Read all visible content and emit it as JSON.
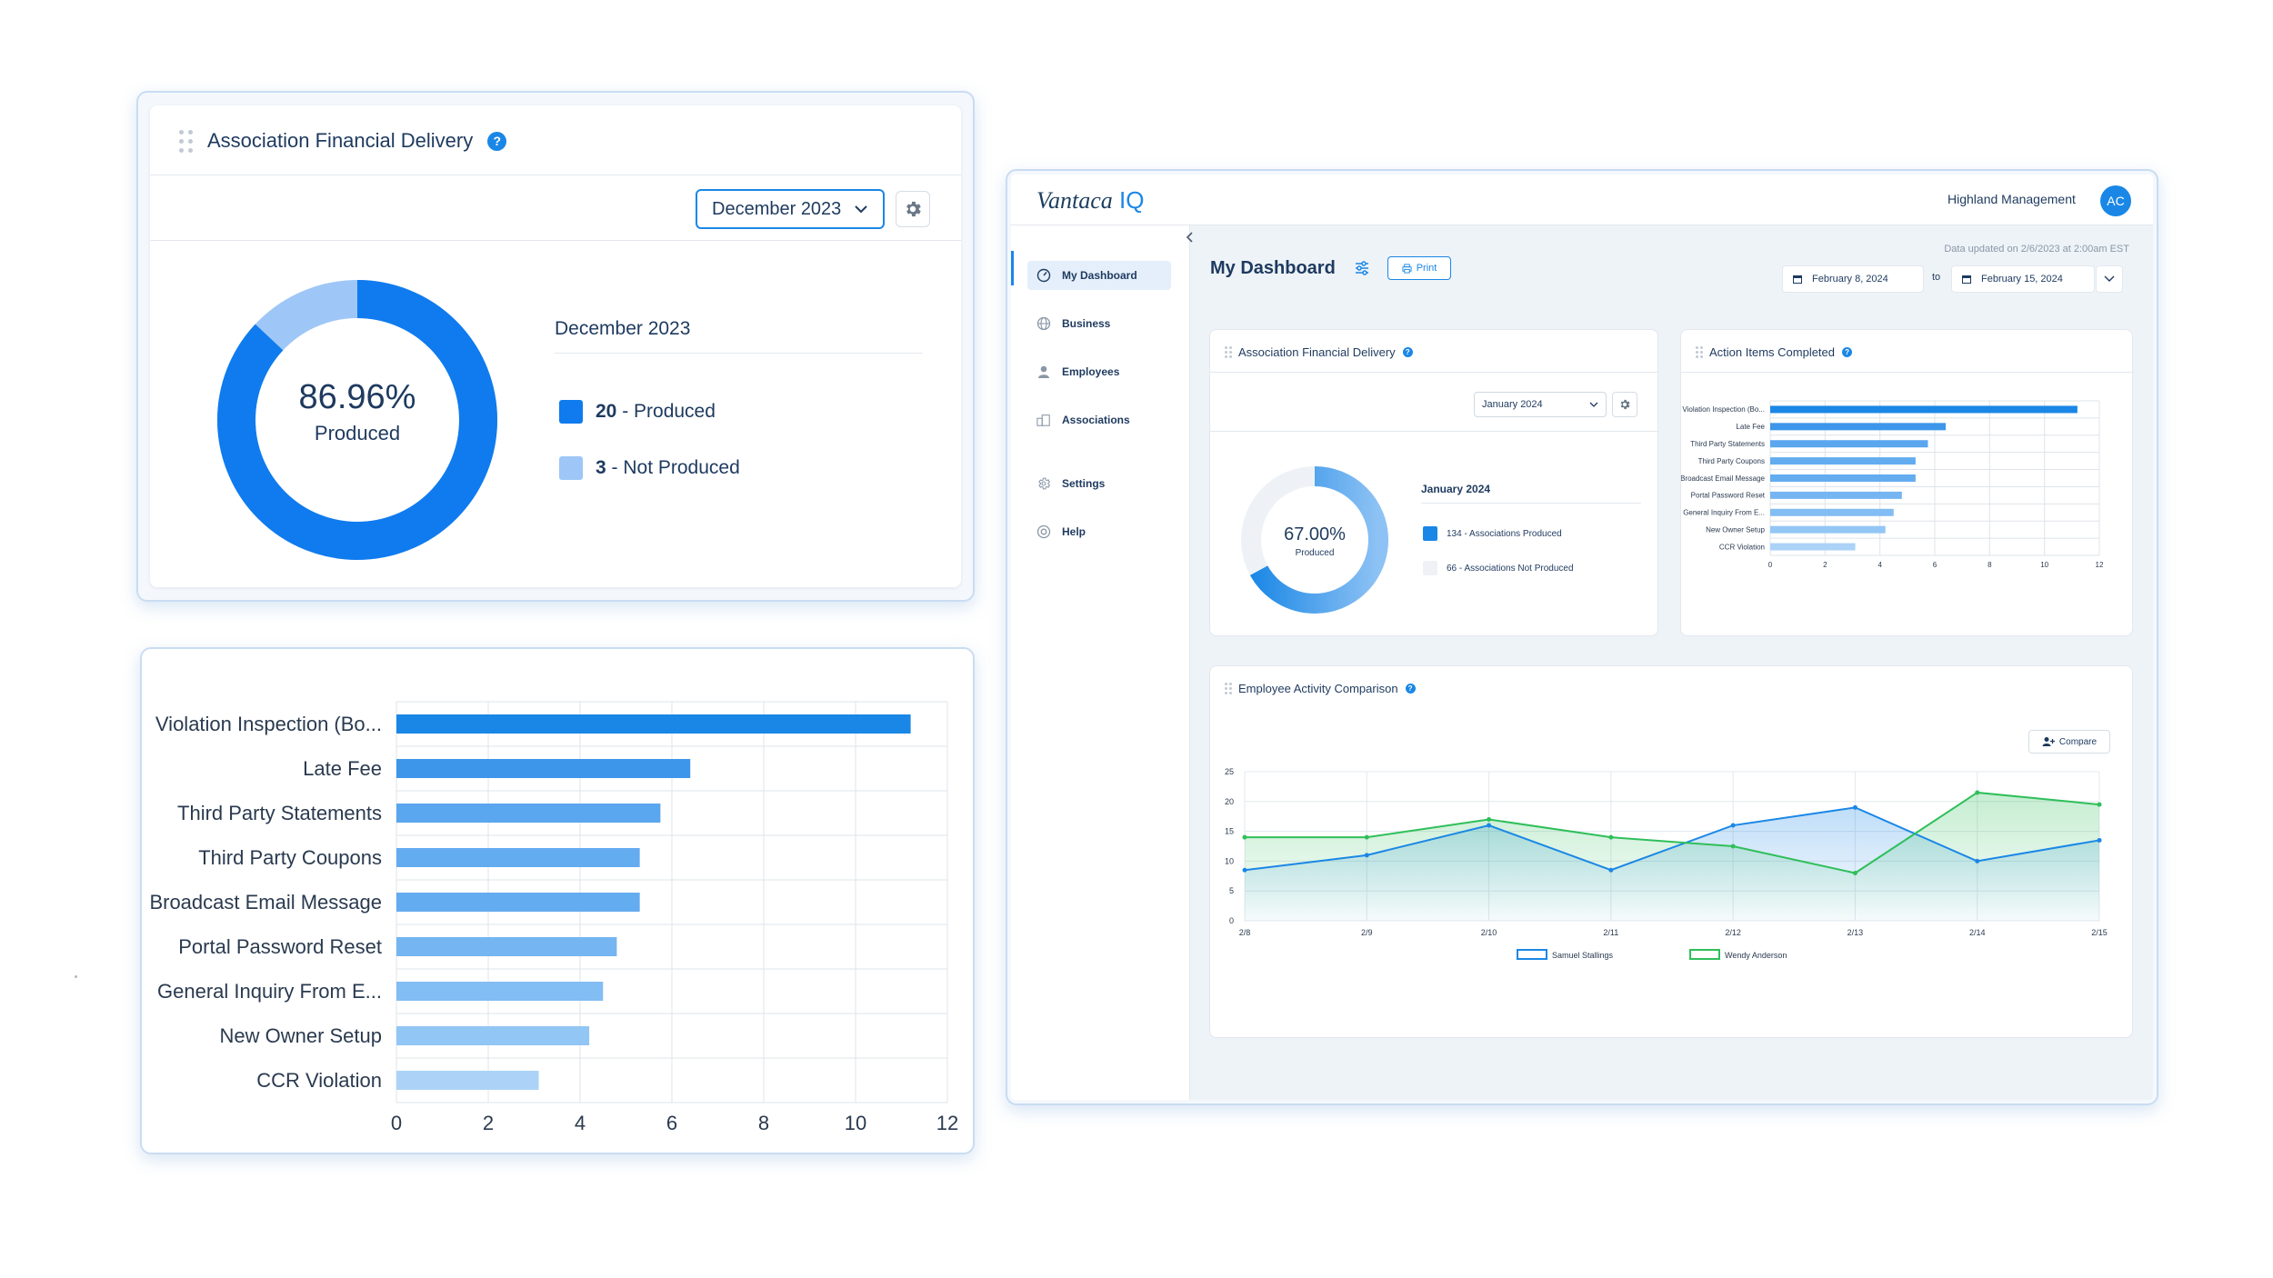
{
  "left_panel": {
    "title": "Association Financial Delivery",
    "help_glyph": "?",
    "month_select": "December 2023",
    "donut": {
      "produced_pct": 86.96,
      "pct_label": "86.96%",
      "center_sub": "Produced"
    },
    "legend_title": "December 2023",
    "legend": [
      {
        "count": "20",
        "label": " - Produced",
        "color": "#0f7bee"
      },
      {
        "count": "3",
        "label": " - Not Produced",
        "color": "#9ec7f7"
      }
    ]
  },
  "left_bar_chart": {
    "chart_data": {
      "type": "bar",
      "orientation": "horizontal",
      "categories": [
        "Violation Inspection (Bo...",
        "Late Fee",
        "Third Party Statements",
        "Third Party Coupons",
        "Broadcast Email Message",
        "Portal Password Reset",
        "General Inquiry From E...",
        "New Owner Setup",
        "CCR Violation"
      ],
      "values": [
        11.2,
        6.4,
        5.75,
        5.3,
        5.3,
        4.8,
        4.5,
        4.2,
        3.1
      ],
      "xlim": [
        0,
        12
      ],
      "xticks": [
        "0",
        "2",
        "4",
        "6",
        "8",
        "10",
        "12"
      ],
      "grid": true
    }
  },
  "app": {
    "logo_main": "Vantaca",
    "logo_suffix": "IQ",
    "company": "Highland Management",
    "avatar": "AC",
    "sidebar": [
      {
        "label": "My Dashboard",
        "icon": "dashboard-icon"
      },
      {
        "label": "Business",
        "icon": "globe-icon"
      },
      {
        "label": "Employees",
        "icon": "person-icon"
      },
      {
        "label": "Associations",
        "icon": "building-icon"
      },
      {
        "label": "Settings",
        "icon": "gear-icon"
      },
      {
        "label": "Help",
        "icon": "lifebuoy-icon"
      }
    ],
    "page_title": "My Dashboard",
    "print_label": "Print",
    "data_updated": "Data updated on 2/6/2023 at 2:00am EST",
    "date_from": "February 8, 2024",
    "date_to_label": "to",
    "date_to": "February 15, 2024",
    "afd_card": {
      "title": "Association Financial Delivery",
      "month_select": "January 2024",
      "donut": {
        "produced_pct": 67.0,
        "pct_label": "67.00%",
        "center_sub": "Produced"
      },
      "legend_title": "January 2024",
      "legend": [
        {
          "label": "134 - Associations Produced",
          "color": "#1a87e6"
        },
        {
          "label": "66 - Associations Not Produced",
          "color": "#e8edf2"
        }
      ]
    },
    "action_card": {
      "title": "Action Items Completed",
      "chart_data": {
        "type": "bar",
        "orientation": "horizontal",
        "categories": [
          "Violation Inspection (Bo...",
          "Late Fee",
          "Third Party Statements",
          "Third Party Coupons",
          "Broadcast Email Message",
          "Portal Password Reset",
          "General Inquiry From E...",
          "New Owner Setup",
          "CCR Violation"
        ],
        "values": [
          11.2,
          6.4,
          5.75,
          5.3,
          5.3,
          4.8,
          4.5,
          4.2,
          3.1
        ],
        "xlim": [
          0,
          12
        ],
        "xticks": [
          "0",
          "2",
          "4",
          "6",
          "8",
          "10",
          "12"
        ],
        "grid": true
      }
    },
    "employee_card": {
      "title": "Employee Activity Comparison",
      "compare_label": "Compare",
      "chart_data": {
        "type": "area",
        "x": [
          "2/8",
          "2/9",
          "2/10",
          "2/11",
          "2/12",
          "2/13",
          "2/14",
          "2/15"
        ],
        "series": [
          {
            "name": "Samuel Stallings",
            "color": "#1a87e6",
            "values": [
              8.5,
              11,
              16,
              8.5,
              16,
              19,
              10,
              13.5
            ]
          },
          {
            "name": "Wendy Anderson",
            "color": "#2fbf5a",
            "values": [
              14,
              14,
              17,
              14,
              12.5,
              8,
              21.5,
              19.5
            ]
          }
        ],
        "ylim": [
          0,
          25
        ],
        "yticks": [
          "0",
          "5",
          "10",
          "15",
          "20",
          "25"
        ],
        "legend_position": "bottom",
        "grid": true
      }
    }
  }
}
